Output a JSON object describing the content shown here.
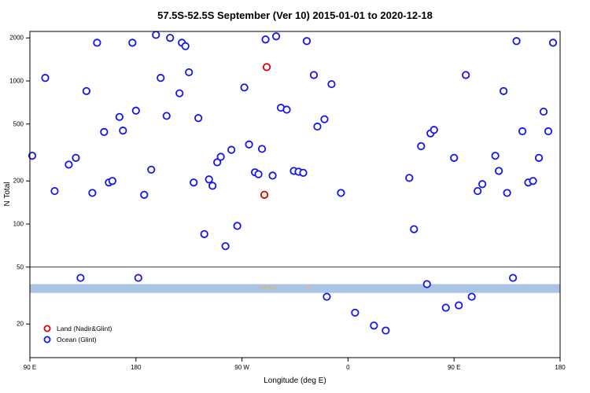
{
  "chart_data": {
    "type": "scatter",
    "title": "57.5S-52.5S September (Ver 10)   2015-01-01 to 2020-12-18",
    "xlabel": "Longitude (deg E)",
    "ylabel": "N Total",
    "x_range_deg": [
      0,
      450
    ],
    "y_log_range": [
      15,
      2400
    ],
    "grid": false,
    "x_ticks": [
      {
        "deg": 0,
        "label": "90 E"
      },
      {
        "deg": 90,
        "label": "180"
      },
      {
        "deg": 180,
        "label": "90 W"
      },
      {
        "deg": 270,
        "label": "0"
      },
      {
        "deg": 360,
        "label": "90 E"
      },
      {
        "deg": 450,
        "label": "180"
      }
    ],
    "y_ticks": [
      20,
      50,
      100,
      200,
      500,
      1000,
      2000
    ],
    "hline_y": 50,
    "hline_color": "#333333",
    "band": {
      "y_low": 33,
      "y_high": 38,
      "color": "#a9c4e4"
    },
    "series": [
      {
        "name": "Ocean (Glint)",
        "color": "#1414ee",
        "marker": "open-circle",
        "points": [
          [
            2,
            300
          ],
          [
            13,
            1050
          ],
          [
            21,
            170
          ],
          [
            33,
            260
          ],
          [
            39,
            290
          ],
          [
            43,
            42
          ],
          [
            48,
            850
          ],
          [
            53,
            165
          ],
          [
            57,
            1850
          ],
          [
            63,
            440
          ],
          [
            67,
            195
          ],
          [
            70,
            200
          ],
          [
            76,
            560
          ],
          [
            79,
            450
          ],
          [
            87,
            1850
          ],
          [
            90,
            620
          ],
          [
            92,
            42
          ],
          [
            97,
            160
          ],
          [
            103,
            240
          ],
          [
            107,
            2100
          ],
          [
            111,
            1050
          ],
          [
            116,
            570
          ],
          [
            119,
            2000
          ],
          [
            127,
            820
          ],
          [
            129,
            1850
          ],
          [
            132,
            1750
          ],
          [
            135,
            1150
          ],
          [
            139,
            195
          ],
          [
            143,
            550
          ],
          [
            148,
            85
          ],
          [
            152,
            205
          ],
          [
            155,
            185
          ],
          [
            159,
            270
          ],
          [
            162,
            295
          ],
          [
            166,
            70
          ],
          [
            171,
            330
          ],
          [
            176,
            97
          ],
          [
            182,
            900
          ],
          [
            186,
            360
          ],
          [
            191,
            230
          ],
          [
            194,
            223
          ],
          [
            197,
            335
          ],
          [
            200,
            1950
          ],
          [
            206,
            218
          ],
          [
            209,
            2050
          ],
          [
            213,
            650
          ],
          [
            218,
            630
          ],
          [
            224,
            235
          ],
          [
            228,
            232
          ],
          [
            232,
            228
          ],
          [
            235,
            1900
          ],
          [
            241,
            1100
          ],
          [
            244,
            480
          ],
          [
            250,
            540
          ],
          [
            252,
            31
          ],
          [
            256,
            950
          ],
          [
            264,
            165
          ],
          [
            276,
            24
          ],
          [
            292,
            19.5
          ],
          [
            302,
            18
          ],
          [
            322,
            210
          ],
          [
            326,
            92
          ],
          [
            332,
            350
          ],
          [
            337,
            38
          ],
          [
            340,
            430
          ],
          [
            343,
            455
          ],
          [
            353,
            26
          ],
          [
            360,
            290
          ],
          [
            364,
            27
          ],
          [
            370,
            1100
          ],
          [
            375,
            31
          ],
          [
            380,
            170
          ],
          [
            384,
            190
          ],
          [
            395,
            300
          ],
          [
            398,
            235
          ],
          [
            402,
            850
          ],
          [
            405,
            165
          ],
          [
            410,
            42
          ],
          [
            413,
            1900
          ],
          [
            418,
            445
          ],
          [
            423,
            195
          ],
          [
            427,
            200
          ],
          [
            432,
            290
          ],
          [
            436,
            610
          ],
          [
            440,
            445
          ],
          [
            444,
            1850
          ]
        ]
      },
      {
        "name": "Land (Nadir&Glint)",
        "color": "#dd0000",
        "marker": "open-circle",
        "points": [
          [
            201,
            1250
          ],
          [
            199,
            160
          ]
        ]
      },
      {
        "name": "band-dots",
        "color": "#e8b84b",
        "marker": "small-dot",
        "points": [
          [
            197,
            36
          ],
          [
            200,
            36.5
          ],
          [
            204,
            36
          ],
          [
            207,
            35.5
          ],
          [
            236,
            36
          ]
        ]
      }
    ],
    "legend": {
      "position": "bottom-left-inside",
      "entries": [
        {
          "label": "Land (Nadir&Glint)",
          "color": "#dd0000"
        },
        {
          "label": "Ocean (Glint)",
          "color": "#1414ee"
        }
      ]
    }
  }
}
